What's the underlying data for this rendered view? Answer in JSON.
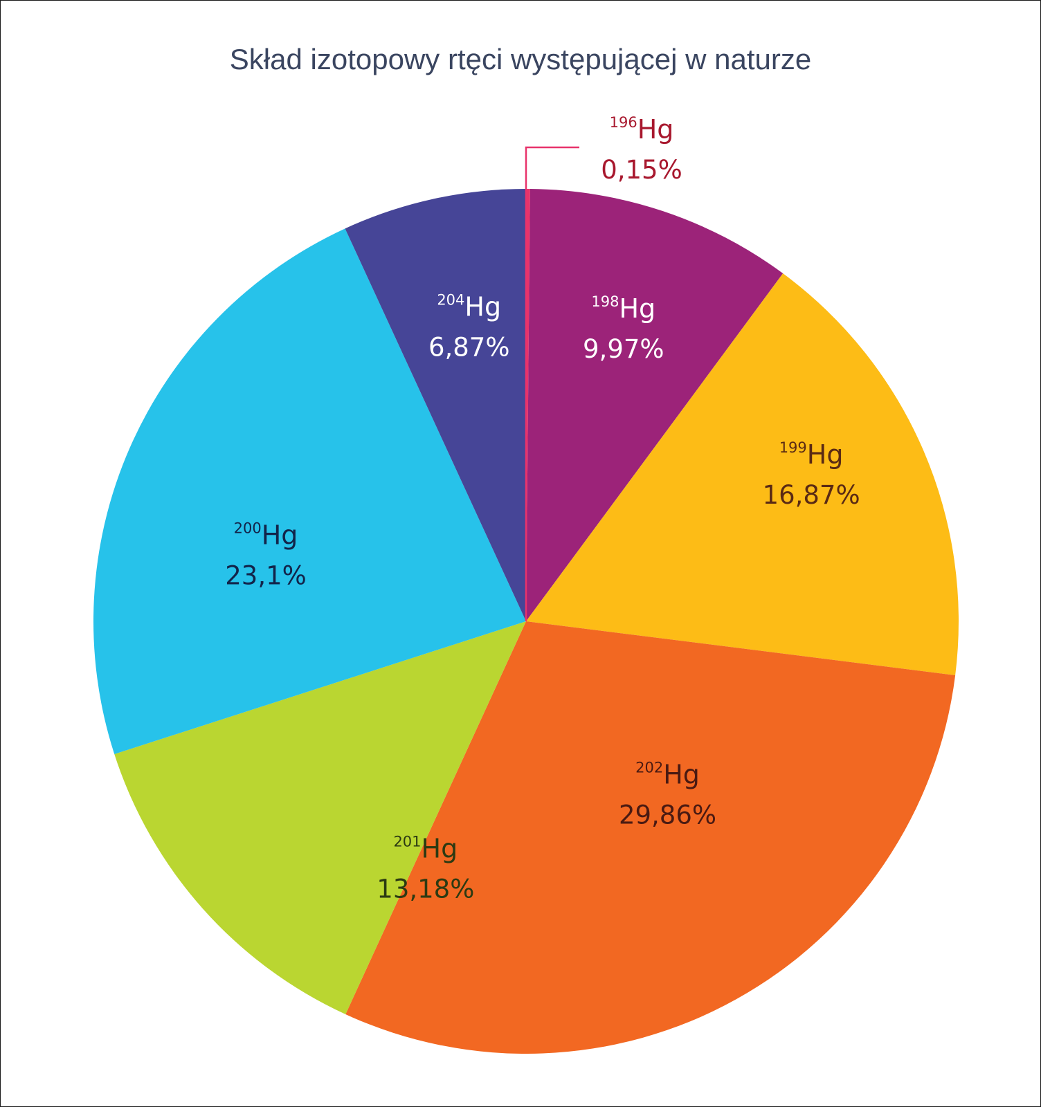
{
  "chart_data": {
    "type": "pie",
    "title": "Skład izotopowy rtęci występującej w naturze",
    "slices": [
      {
        "mass": "196",
        "symbol": "Hg",
        "value": 0.15,
        "label": "0,15%",
        "color": "#e8336b",
        "text_color": "#a8182e"
      },
      {
        "mass": "198",
        "symbol": "Hg",
        "value": 9.97,
        "label": "9,97%",
        "color": "#9c2379",
        "text_color": "#ffffff"
      },
      {
        "mass": "199",
        "symbol": "Hg",
        "value": 16.87,
        "label": "16,87%",
        "color": "#fdbc16",
        "text_color": "#5a2a14"
      },
      {
        "mass": "202",
        "symbol": "Hg",
        "value": 29.86,
        "label": "29,86%",
        "color": "#f26822",
        "text_color": "#4a1a12"
      },
      {
        "mass": "201",
        "symbol": "Hg",
        "value": 13.18,
        "label": "13,18%",
        "color": "#bad631",
        "text_color": "#2c3a12"
      },
      {
        "mass": "200",
        "symbol": "Hg",
        "value": 23.1,
        "label": "23,1%",
        "color": "#27c2ea",
        "text_color": "#12244a"
      },
      {
        "mass": "204",
        "symbol": "Hg",
        "value": 6.87,
        "label": "6,87%",
        "color": "#464597",
        "text_color": "#ffffff"
      }
    ]
  }
}
